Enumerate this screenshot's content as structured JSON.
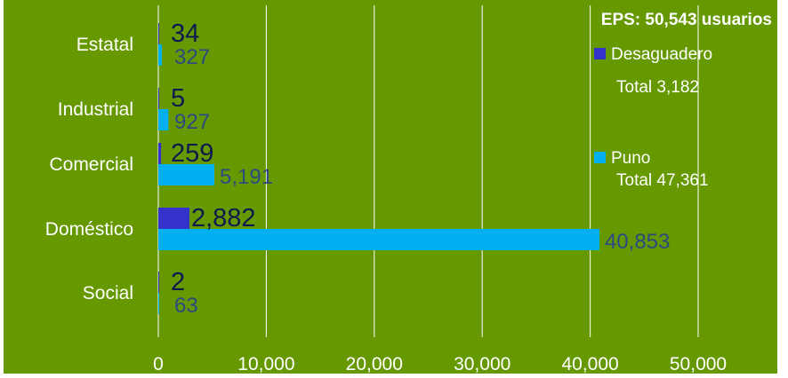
{
  "colors": {
    "plot_bg": "#669900",
    "gridline": "#ffffff",
    "desaguadero_bar": "#3333cc",
    "puno_bar": "#00b0f0",
    "desaguadero_label": "#0d1a4d",
    "puno_label": "#2b4a80",
    "axis_text": "#ffffff"
  },
  "chart_data": {
    "type": "bar",
    "orientation": "horizontal",
    "title": "EPS: 50,543 usuarios",
    "categories": [
      "Estatal",
      "Industrial",
      "Comercial",
      "Doméstico",
      "Social"
    ],
    "series": [
      {
        "name": "Desaguadero",
        "total_label": "Total 3,182",
        "values": [
          34,
          5,
          259,
          2882,
          2
        ],
        "value_labels": [
          "34",
          "5",
          "259",
          "2,882",
          "2"
        ]
      },
      {
        "name": "Puno",
        "total_label": "Total 47,361",
        "values": [
          327,
          927,
          5191,
          40853,
          63
        ],
        "value_labels": [
          "327",
          "927",
          "5,191",
          "40,853",
          "63"
        ]
      }
    ],
    "xlim": [
      0,
      50000
    ],
    "xticks": [
      0,
      10000,
      20000,
      30000,
      40000,
      50000
    ],
    "xtick_labels": [
      "0",
      "10,000",
      "20,000",
      "30,000",
      "40,000",
      "50,000"
    ],
    "grid": true,
    "legend_position": "right"
  }
}
